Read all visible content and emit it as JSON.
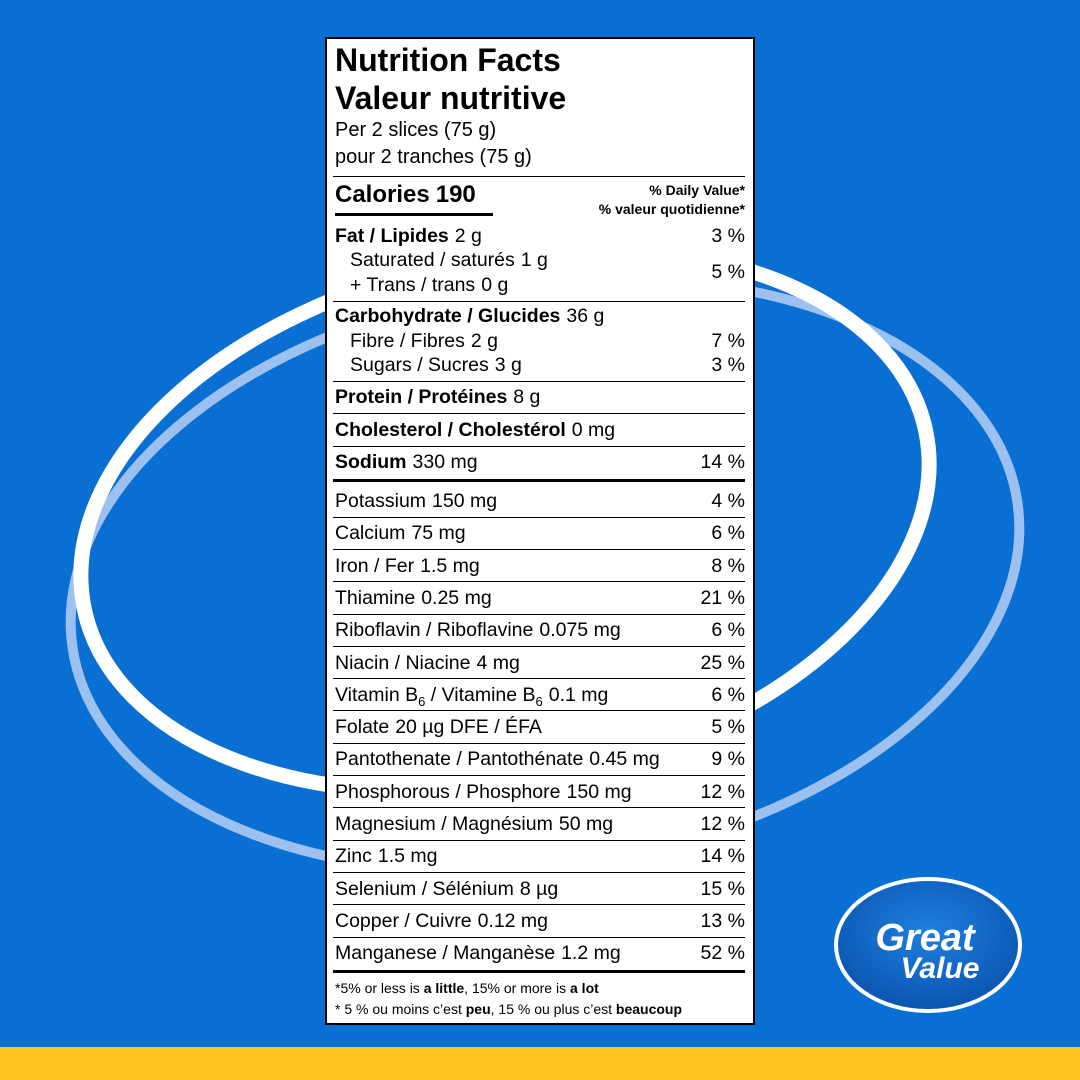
{
  "title": [
    "Nutrition Facts",
    "Valeur nutritive"
  ],
  "serving": [
    "Per 2 slices (75 g)",
    "pour 2 tranches (75 g)"
  ],
  "calories": {
    "label": "Calories",
    "value": "190"
  },
  "daily_value_header": [
    "% Daily Value*",
    "% valeur quotidienne*"
  ],
  "fat": {
    "name": "Fat / Lipides",
    "amount": "2 g",
    "dv": "3 %"
  },
  "saturated": {
    "name": "Saturated / saturés",
    "amount": "1 g"
  },
  "trans": {
    "name": "+ Trans / trans",
    "amount": "0 g"
  },
  "saturated_trans_dv": "5 %",
  "carbohydrate": {
    "name": "Carbohydrate / Glucides",
    "amount": "36 g"
  },
  "fibre": {
    "name": "Fibre / Fibres",
    "amount": "2 g",
    "dv": "7 %"
  },
  "sugars": {
    "name": "Sugars / Sucres",
    "amount": "3 g",
    "dv": "3 %"
  },
  "protein": {
    "name": "Protein / Protéines",
    "amount": "8 g"
  },
  "cholesterol": {
    "name": "Cholesterol / Cholestérol",
    "amount": "0 mg"
  },
  "sodium": {
    "name": "Sodium",
    "amount": "330 mg",
    "dv": "14 %"
  },
  "micronutrients": [
    {
      "name": "Potassium",
      "amount": "150 mg",
      "dv": "4 %"
    },
    {
      "name": "Calcium",
      "amount": "75 mg",
      "dv": "6 %"
    },
    {
      "name": "Iron / Fer",
      "amount": "1.5 mg",
      "dv": "8 %"
    },
    {
      "name": "Thiamine",
      "amount": "0.25 mg",
      "dv": "21 %"
    },
    {
      "name": "Riboflavin / Riboflavine",
      "amount": "0.075 mg",
      "dv": "6 %"
    },
    {
      "name": "Niacin / Niacine",
      "amount": "4 mg",
      "dv": "25 %"
    },
    {
      "name": [
        "Vitamin B",
        "6",
        " / Vitamine B",
        "6"
      ],
      "amount": "0.1 mg",
      "dv": "6 %"
    },
    {
      "name": "Folate",
      "amount": "20 µg DFE / ÉFA",
      "dv": "5 %"
    },
    {
      "name": "Pantothenate / Pantothénate",
      "amount": "0.45 mg",
      "dv": "9 %"
    },
    {
      "name": "Phosphorous / Phosphore",
      "amount": "150 mg",
      "dv": "12 %"
    },
    {
      "name": "Magnesium / Magnésium",
      "amount": "50 mg",
      "dv": "12 %"
    },
    {
      "name": "Zinc",
      "amount": "1.5 mg",
      "dv": "14 %"
    },
    {
      "name": "Selenium / Sélénium",
      "amount": "8 µg",
      "dv": "15 %"
    },
    {
      "name": "Copper / Cuivre",
      "amount": "0.12 mg",
      "dv": "13 %"
    },
    {
      "name": "Manganese / Manganèse",
      "amount": "1.2 mg",
      "dv": "52 %"
    }
  ],
  "footnotes": [
    [
      "*5% or less is ",
      "a little",
      ", 15% or more is ",
      "a lot"
    ],
    [
      "* 5 % ou moins c’est ",
      "peu",
      ", 15 % ou plus c’est ",
      "beaucoup"
    ]
  ],
  "logo": [
    "Great",
    "Value"
  ]
}
